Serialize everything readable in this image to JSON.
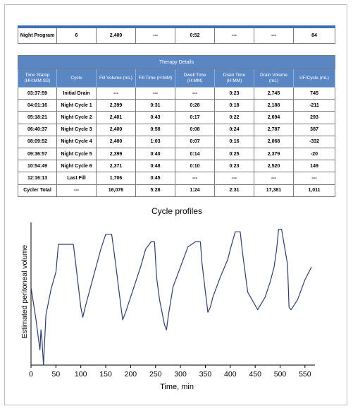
{
  "summary_row": [
    "Night Program",
    "6",
    "2,400",
    "---",
    "0:52",
    "---",
    "---",
    "84"
  ],
  "details": {
    "title": "Therapy Details",
    "headers": [
      "Time Stamp (HH:MM:SS)",
      "Cycle",
      "Fill Volume (mL)",
      "Fill Time (H:MM)",
      "Dwell Time (H:MM)",
      "Drain Time (H:MM)",
      "Drain Volume (mL)",
      "UF/Cycle (mL)"
    ],
    "rows": [
      [
        "03:37:59",
        "Initial Drain",
        "---",
        "---",
        "---",
        "0:23",
        "2,745",
        "745"
      ],
      [
        "04:01:16",
        "Night Cycle 1",
        "2,399",
        "0:31",
        "0:28",
        "0:18",
        "2,188",
        "-211"
      ],
      [
        "05:18:21",
        "Night Cycle 2",
        "2,401",
        "0:43",
        "0:17",
        "0:22",
        "2,694",
        "293"
      ],
      [
        "06:40:37",
        "Night Cycle 3",
        "2,400",
        "0:58",
        "0:08",
        "0:24",
        "2,787",
        "387"
      ],
      [
        "08:09:52",
        "Night Cycle 4",
        "2,400",
        "1:03",
        "0:07",
        "0:16",
        "2,068",
        "-332"
      ],
      [
        "09:36:57",
        "Night Cycle 5",
        "2,399",
        "0:40",
        "0:14",
        "0:25",
        "2,379",
        "-20"
      ],
      [
        "10:54:49",
        "Night Cycle 6",
        "2,371",
        "0:48",
        "0:10",
        "0:23",
        "2,520",
        "149"
      ],
      [
        "12:16:13",
        "Last Fill",
        "1,706",
        "0:45",
        "---",
        "---",
        "---",
        "---"
      ],
      [
        "Cycler Total",
        "---",
        "16,076",
        "5:28",
        "1:24",
        "2:31",
        "17,381",
        "1,011"
      ]
    ]
  },
  "chart_data": {
    "type": "line",
    "title": "Cycle profiles",
    "xlabel": "Time, min",
    "ylabel": "Estimated peritoneal volume",
    "xlim": [
      0,
      570
    ],
    "x_ticks": [
      0,
      50,
      100,
      150,
      200,
      250,
      300,
      350,
      400,
      450,
      500,
      550
    ],
    "y_ticks_shown": false,
    "grid": false,
    "line_color": "#2e3f6e",
    "series": [
      {
        "x": [
          0,
          10,
          18,
          20,
          22,
          25,
          30,
          40,
          50,
          55,
          65,
          80,
          85,
          90,
          100,
          104,
          110,
          125,
          140,
          150,
          160,
          162,
          170,
          180,
          184,
          190,
          205,
          220,
          230,
          241,
          248,
          252,
          258,
          268,
          272,
          276,
          285,
          300,
          315,
          330,
          340,
          343,
          349,
          355,
          360,
          365,
          380,
          395,
          400,
          410,
          415,
          420,
          425,
          435,
          455,
          470,
          480,
          488,
          493,
          497,
          503,
          515,
          518,
          522,
          535,
          550,
          563
        ],
        "y": [
          1550,
          900,
          300,
          700,
          500,
          0,
          1000,
          1500,
          1850,
          2400,
          2400,
          2400,
          2400,
          2000,
          1150,
          950,
          1200,
          1750,
          2300,
          2600,
          2600,
          2600,
          2000,
          1200,
          900,
          1050,
          1500,
          1950,
          2300,
          2450,
          2450,
          1750,
          1300,
          800,
          700,
          1000,
          1550,
          1950,
          2350,
          2450,
          2450,
          2050,
          1550,
          1050,
          1150,
          1350,
          1750,
          2100,
          2300,
          2650,
          2650,
          2650,
          2200,
          1450,
          1100,
          1350,
          1650,
          1950,
          2300,
          2700,
          2700,
          2000,
          1150,
          1100,
          1300,
          1700,
          1950
        ]
      }
    ]
  }
}
